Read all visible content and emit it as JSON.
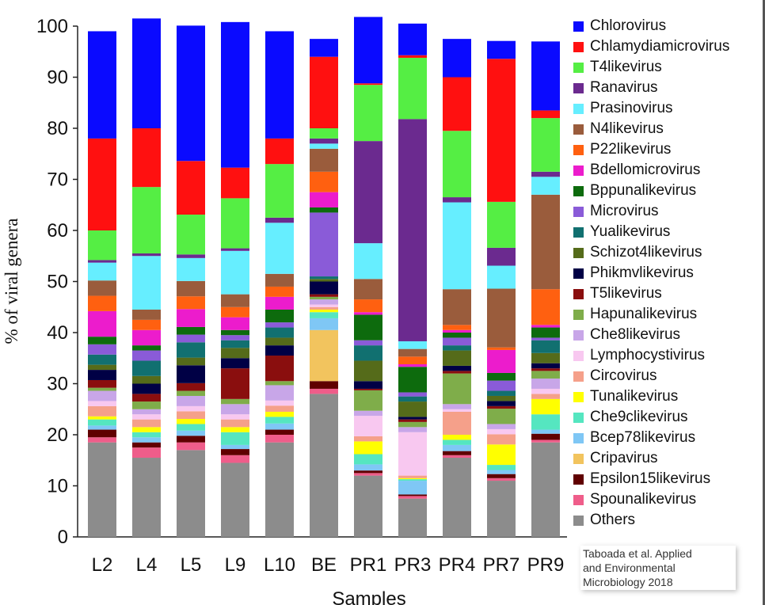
{
  "chart_data": {
    "type": "bar",
    "stacked": true,
    "xlabel": "Samples",
    "ylabel": "% of viral genera",
    "ylim": [
      0,
      100
    ],
    "yticks": [
      0,
      10,
      20,
      30,
      40,
      50,
      60,
      70,
      80,
      90,
      100
    ],
    "grid": false,
    "legend_position": "right",
    "categories": [
      "L2",
      "L4",
      "L5",
      "L9",
      "L10",
      "BE",
      "PR1",
      "PR3",
      "PR4",
      "PR7",
      "PR9"
    ],
    "series": [
      {
        "name": "Others",
        "color": "#8c8c8c",
        "values": [
          18.5,
          15.5,
          17,
          14.5,
          18.5,
          28,
          12,
          7.5,
          15.5,
          11,
          18.5
        ]
      },
      {
        "name": "Spounalikevirus",
        "color": "#ef5d8a",
        "values": [
          1,
          2,
          1.5,
          1.5,
          1.5,
          1,
          0.5,
          0.5,
          0.5,
          0.5,
          0.5
        ]
      },
      {
        "name": "Epsilon15likevirus",
        "color": "#600000",
        "values": [
          1.5,
          1,
          1.3,
          1.2,
          1,
          1.5,
          0.5,
          0.3,
          0.8,
          0.8,
          1.2
        ]
      },
      {
        "name": "Cripavirus",
        "color": "#f2c45e",
        "values": [
          0,
          0,
          0,
          0,
          0,
          10,
          0,
          0,
          0,
          0,
          0
        ]
      },
      {
        "name": "Bcep78likevirus",
        "color": "#7fc7f5",
        "values": [
          0.8,
          1,
          1,
          0.8,
          1.2,
          2.3,
          1.2,
          2.7,
          1.2,
          0.8,
          0.8
        ]
      },
      {
        "name": "Che9clikevirus",
        "color": "#55e6c0",
        "values": [
          1.2,
          1,
          1.3,
          2.5,
          1.3,
          1.2,
          2,
          0.3,
          1,
          1,
          3
        ]
      },
      {
        "name": "Tunalikevirus",
        "color": "#ffff00",
        "values": [
          0.6,
          1,
          1,
          1,
          1,
          0.5,
          2.5,
          0.2,
          1,
          4,
          3
        ]
      },
      {
        "name": "Circovirus",
        "color": "#f5a08a",
        "values": [
          2,
          1.5,
          1.5,
          1.5,
          1.2,
          0.5,
          1,
          0.5,
          4.5,
          2,
          1
        ]
      },
      {
        "name": "Lymphocystivirus",
        "color": "#f8c8f0",
        "values": [
          1,
          1,
          1,
          1,
          1,
          0.5,
          4,
          8.5,
          0.5,
          1,
          1
        ]
      },
      {
        "name": "Che8likevirus",
        "color": "#c8a6e8",
        "values": [
          2,
          1,
          2,
          2,
          3,
          1,
          1,
          1,
          1,
          1,
          2
        ]
      },
      {
        "name": "Hapunalikevirus",
        "color": "#7fad4a",
        "values": [
          0.6,
          1.5,
          1,
          1,
          0.8,
          0.5,
          4,
          1,
          6,
          3,
          1.5
        ]
      },
      {
        "name": "T5likevirus",
        "color": "#8a0e0e",
        "values": [
          1.5,
          1.5,
          1.5,
          6,
          5,
          0.5,
          0.3,
          0.5,
          0.5,
          0.5,
          0.5
        ]
      },
      {
        "name": "Phikmvlikevirus",
        "color": "#000045",
        "values": [
          2,
          2,
          3.5,
          2,
          2,
          2.5,
          1.5,
          0.5,
          1,
          1,
          1
        ]
      },
      {
        "name": "Schizot4likevirus",
        "color": "#556b1a",
        "values": [
          1,
          1.5,
          1.5,
          2,
          1.5,
          0.5,
          4,
          3,
          3,
          1,
          2
        ]
      },
      {
        "name": "Yualikevirus",
        "color": "#117070",
        "values": [
          2,
          3,
          3,
          1.5,
          2,
          0.5,
          3,
          1,
          1,
          1,
          2.5
        ]
      },
      {
        "name": "Microvirus",
        "color": "#8a5bd8",
        "values": [
          2,
          2,
          1.5,
          1,
          1,
          12.5,
          1,
          0.8,
          1.5,
          2,
          0.5
        ]
      },
      {
        "name": "Bppunalikevirus",
        "color": "#0d6b0d",
        "values": [
          1.5,
          1,
          1.5,
          1,
          2.5,
          1,
          5,
          5,
          1,
          1.5,
          2
        ]
      },
      {
        "name": "Bdellomicrovirus",
        "color": "#ec1ccc",
        "values": [
          5,
          3,
          3.5,
          2.5,
          2.5,
          3,
          0.5,
          0.5,
          0.5,
          4.5,
          0.5
        ]
      },
      {
        "name": "P22likevirus",
        "color": "#ff6010",
        "values": [
          3,
          2,
          2.5,
          2,
          2,
          4,
          2.5,
          1.5,
          1,
          0.5,
          7
        ]
      },
      {
        "name": "N4likevirus",
        "color": "#9a5c3c",
        "values": [
          3,
          2,
          3,
          2.5,
          2.5,
          4.5,
          4,
          1.5,
          7,
          11.5,
          18.5
        ]
      },
      {
        "name": "Prasinovirus",
        "color": "#66eeff",
        "values": [
          3.5,
          10.5,
          4.5,
          8.5,
          10,
          1,
          7,
          1.5,
          17,
          4.5,
          3.5
        ]
      },
      {
        "name": "Ranavirus",
        "color": "#6b2a8f",
        "values": [
          0.5,
          0.5,
          0.7,
          0.5,
          1,
          1,
          20,
          43.5,
          1,
          3.5,
          1
        ]
      },
      {
        "name": "T4likevirus",
        "color": "#55ee44",
        "values": [
          5.8,
          13,
          7.8,
          9.8,
          10.5,
          2,
          11,
          12,
          13,
          9,
          10.5
        ]
      },
      {
        "name": "Chlamydiamicrovirus",
        "color": "#ff1010",
        "values": [
          18,
          11.5,
          10.5,
          6,
          5,
          14,
          0.3,
          0.5,
          10.5,
          28,
          1.5
        ]
      },
      {
        "name": "Chlorovirus",
        "color": "#0a0aff",
        "values": [
          21,
          21.5,
          26.5,
          28.5,
          21,
          3.5,
          13,
          6.2,
          7.5,
          3.5,
          13.5
        ]
      }
    ]
  },
  "legend_order": [
    "Chlorovirus",
    "Chlamydiamicrovirus",
    "T4likevirus",
    "Ranavirus",
    "Prasinovirus",
    "N4likevirus",
    "P22likevirus",
    "Bdellomicrovirus",
    "Bppunalikevirus",
    "Microvirus",
    "Yualikevirus",
    "Schizot4likevirus",
    "Phikmvlikevirus",
    "T5likevirus",
    "Hapunalikevirus",
    "Che8likevirus",
    "Lymphocystivirus",
    "Circovirus",
    "Tunalikevirus",
    "Che9clikevirus",
    "Bcep78likevirus",
    "Cripavirus",
    "Epsilon15likevirus",
    "Spounalikevirus",
    "Others"
  ],
  "credit": {
    "line1": "Taboada et al. Applied",
    "line2": "and Environmental",
    "line3": "Microbiology 2018"
  }
}
